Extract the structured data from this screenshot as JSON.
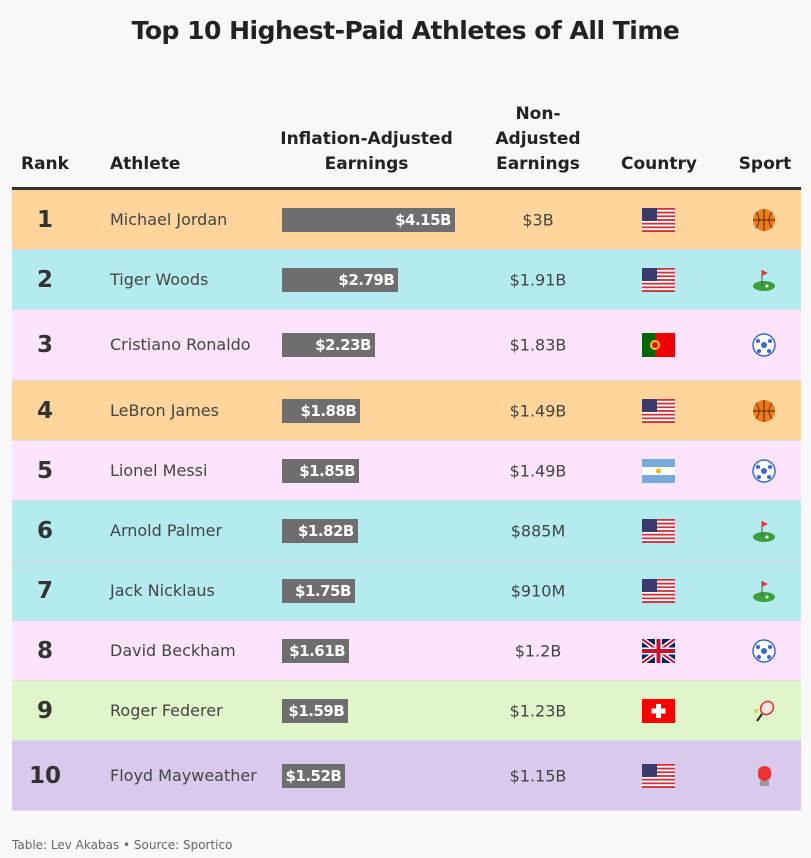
{
  "title": "Top 10 Highest-Paid Athletes of All Time",
  "headers": {
    "rank": "Rank",
    "athlete": "Athlete",
    "inflation": "Inflation-Adjusted Earnings",
    "nonadj": "Non-Adjusted Earnings",
    "country": "Country",
    "sport": "Sport"
  },
  "colors": {
    "basketball": "#ffd59b",
    "golf": "#b3ebef",
    "soccer": "#fde4fd",
    "tennis": "#e0f5c9",
    "boxing": "#d9c9ec",
    "bar": "#6e6e6e"
  },
  "chart_data": {
    "type": "table",
    "title": "Top 10 Highest-Paid Athletes of All Time",
    "columns": [
      "Rank",
      "Athlete",
      "Inflation-Adjusted Earnings",
      "Non-Adjusted Earnings",
      "Country",
      "Sport"
    ],
    "rows": [
      {
        "rank": "1",
        "athlete": "Michael Jordan",
        "inflation_value": 4.15,
        "inflation_label": "$4.15B",
        "nonadj": "$3B",
        "country": "us",
        "sport": "basketball"
      },
      {
        "rank": "2",
        "athlete": "Tiger Woods",
        "inflation_value": 2.79,
        "inflation_label": "$2.79B",
        "nonadj": "$1.91B",
        "country": "us",
        "sport": "golf"
      },
      {
        "rank": "3",
        "athlete": "Cristiano Ronaldo",
        "inflation_value": 2.23,
        "inflation_label": "$2.23B",
        "nonadj": "$1.83B",
        "country": "pt",
        "sport": "soccer"
      },
      {
        "rank": "4",
        "athlete": "LeBron James",
        "inflation_value": 1.88,
        "inflation_label": "$1.88B",
        "nonadj": "$1.49B",
        "country": "us",
        "sport": "basketball"
      },
      {
        "rank": "5",
        "athlete": "Lionel Messi",
        "inflation_value": 1.85,
        "inflation_label": "$1.85B",
        "nonadj": "$1.49B",
        "country": "ar",
        "sport": "soccer"
      },
      {
        "rank": "6",
        "athlete": "Arnold Palmer",
        "inflation_value": 1.82,
        "inflation_label": "$1.82B",
        "nonadj": "$885M",
        "country": "us",
        "sport": "golf"
      },
      {
        "rank": "7",
        "athlete": "Jack Nicklaus",
        "inflation_value": 1.75,
        "inflation_label": "$1.75B",
        "nonadj": "$910M",
        "country": "us",
        "sport": "golf"
      },
      {
        "rank": "8",
        "athlete": "David Beckham",
        "inflation_value": 1.61,
        "inflation_label": "$1.61B",
        "nonadj": "$1.2B",
        "country": "gb",
        "sport": "soccer"
      },
      {
        "rank": "9",
        "athlete": "Roger Federer",
        "inflation_value": 1.59,
        "inflation_label": "$1.59B",
        "nonadj": "$1.23B",
        "country": "ch",
        "sport": "tennis"
      },
      {
        "rank": "10",
        "athlete": "Floyd Mayweather",
        "inflation_value": 1.52,
        "inflation_label": "$1.52B",
        "nonadj": "$1.15B",
        "country": "us",
        "sport": "boxing"
      }
    ]
  },
  "footer": "Table: Lev Akabas • Source: Sportico"
}
